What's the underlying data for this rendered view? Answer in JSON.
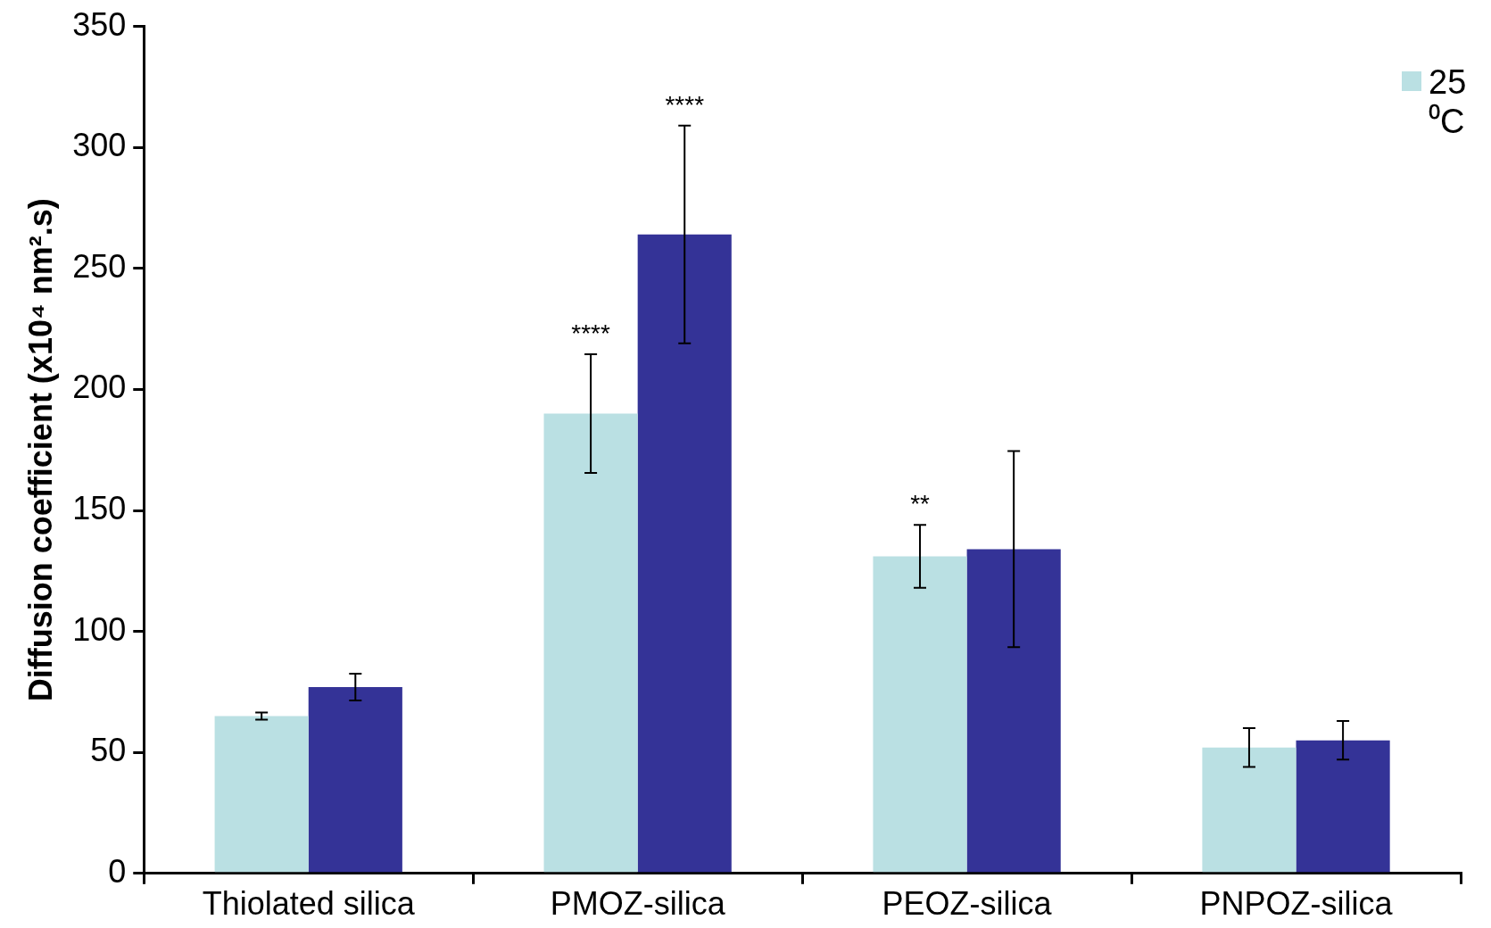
{
  "chart_data": {
    "type": "bar",
    "ylabel": "Diffusion coefficient (x10⁴ nm².s)",
    "categories": [
      "Thiolated silica",
      "PMOZ-silica",
      "PEOZ-silica",
      "PNPOZ-silica"
    ],
    "series": [
      {
        "name": "25 ⁰C",
        "color": "#bae0e3",
        "values": [
          65,
          190,
          131,
          52
        ],
        "errors": [
          1.5,
          24.5,
          13,
          8
        ]
      },
      {
        "color": "#343397",
        "values": [
          77,
          264,
          134,
          55
        ],
        "errors": [
          5.5,
          45,
          40.5,
          8
        ]
      }
    ],
    "ylim": [
      0,
      350
    ],
    "yticks": [
      0,
      50,
      100,
      150,
      200,
      250,
      300,
      350
    ],
    "grid": false,
    "legend": "top right",
    "annotations": [
      "****",
      "****",
      "**"
    ]
  }
}
